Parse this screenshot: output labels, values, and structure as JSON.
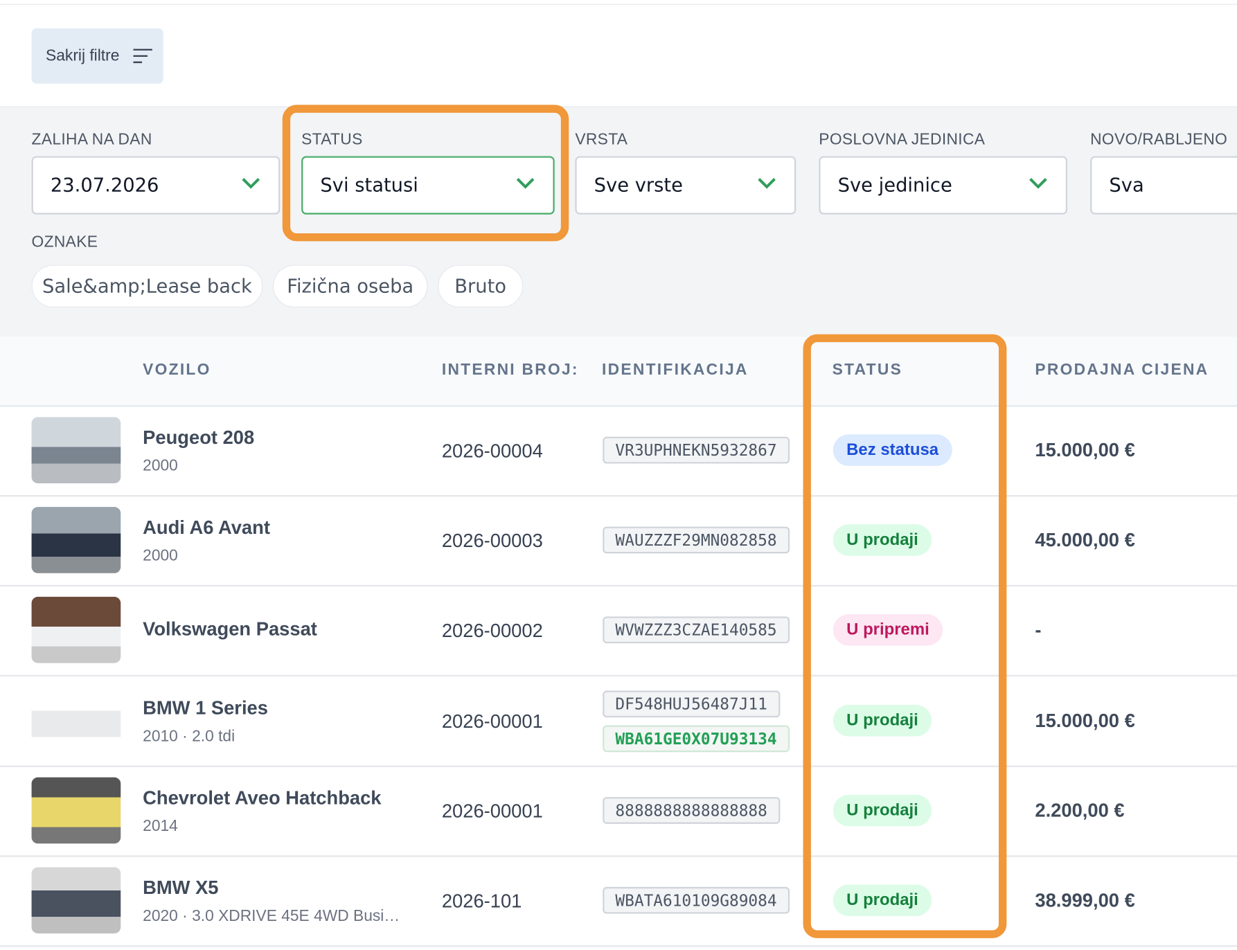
{
  "toolbar": {
    "button": "Sakrij filtre"
  },
  "filters": [
    {
      "label": "ZALIHA NA DAN",
      "value": "23.07.2026"
    },
    {
      "label": "STATUS",
      "value": "Svi statusi"
    },
    {
      "label": "VRSTA",
      "value": "Sve vrste"
    },
    {
      "label": "POSLOVNA JEDINICA",
      "value": "Sve jedinice"
    },
    {
      "label": "NOVO/RABLJENO",
      "value": "Sva"
    }
  ],
  "tags": {
    "label": "OZNAKE",
    "items": [
      "Sale&amp;Lease back",
      "Fizična oseba",
      "Bruto"
    ]
  },
  "table": {
    "headers": [
      "VOZILO",
      "INTERNI BROJ:",
      "IDENTIFIKACIJA",
      "STATUS",
      "PRODAJNA CIJENA"
    ],
    "rows": [
      {
        "name": "Peugeot 208",
        "detail": "2000",
        "internal": "2026-00004",
        "ids": [
          "VR3UPHNEKN5932867"
        ],
        "status": "Bez statusa",
        "price": "15.000,00 €"
      },
      {
        "name": "Audi A6 Avant",
        "detail": "2000",
        "internal": "2026-00003",
        "ids": [
          "WAUZZZF29MN082858"
        ],
        "status": "U prodaji",
        "price": "45.000,00 €"
      },
      {
        "name": "Volkswagen Passat",
        "detail": null,
        "internal": "2026-00002",
        "ids": [
          "WVWZZZ3CZAE140585"
        ],
        "status": "U pripremi",
        "price": "-"
      },
      {
        "name": "BMW 1 Series",
        "detail": "2010 · 2.0 tdi",
        "internal": "2026-00001",
        "ids": [
          "DF548HUJ56487J11",
          "WBA61GE0X07U93134"
        ],
        "status": "U prodaji",
        "price": "15.000,00 €"
      },
      {
        "name": "Chevrolet Aveo Hatchback",
        "detail": "2014",
        "internal": "2026-00001",
        "ids": [
          "8888888888888888"
        ],
        "status": "U prodaji",
        "price": "2.200,00 €"
      },
      {
        "name": "BMW X5",
        "detail": "2020 · 3.0 XDRIVE 45E 4WD Busi…",
        "internal": "2026-101",
        "ids": [
          "WBATA610109G89084"
        ],
        "status": "U prodaji",
        "price": "38.999,00 €"
      }
    ]
  }
}
